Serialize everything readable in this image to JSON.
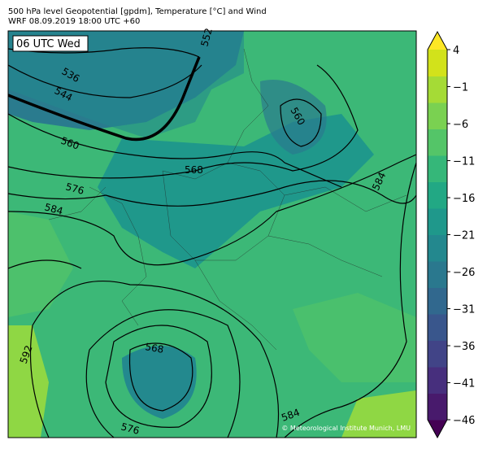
{
  "header": {
    "title": "500 hPa level Geopotential [gpdm], Temperature [°C] and Wind",
    "subtitle": "WRF 08.09.2019 18:00 UTC +60"
  },
  "map": {
    "time_label": "06 UTC Wed",
    "contour_labels": [
      "536",
      "544",
      "552",
      "560",
      "568",
      "576",
      "584",
      "560",
      "584",
      "568",
      "576",
      "584",
      "592"
    ],
    "credit": "© Meteorological Institute Munich, LMU"
  },
  "colorbar": {
    "ticks": [
      4,
      {
        "value": -1,
        "label": "−1"
      },
      {
        "value": -6,
        "label": "−6"
      },
      {
        "value": -11,
        "label": "−11"
      },
      {
        "value": -16,
        "label": "−16"
      },
      {
        "value": -21,
        "label": "−21"
      },
      {
        "value": -26,
        "label": "−26"
      },
      {
        "value": -31,
        "label": "−31"
      },
      {
        "value": -36,
        "label": "−36"
      },
      {
        "value": -41,
        "label": "−41"
      },
      {
        "value": -46,
        "label": "−46"
      }
    ],
    "lim": [
      -46,
      4
    ],
    "colors": [
      "#440154",
      "#481a6c",
      "#472f7d",
      "#414487",
      "#39568c",
      "#31688e",
      "#2a788e",
      "#23888e",
      "#1f988b",
      "#22a884",
      "#35b779",
      "#54c568",
      "#7ad151",
      "#a5db36",
      "#d2e21b",
      "#fde725"
    ]
  }
}
